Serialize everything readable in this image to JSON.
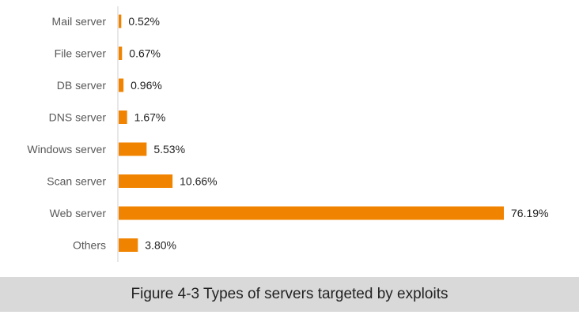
{
  "caption": "Figure 4-3 Types of servers targeted by exploits",
  "colors": {
    "bar": "#f08400",
    "axis": "#cfcfcf"
  },
  "chart_data": {
    "type": "bar",
    "orientation": "horizontal",
    "categories": [
      "Mail server",
      "File server",
      "DB server",
      "DNS server",
      "Windows server",
      "Scan server",
      "Web server",
      "Others"
    ],
    "values": [
      0.52,
      0.67,
      0.96,
      1.67,
      5.53,
      10.66,
      76.19,
      3.8
    ],
    "value_labels": [
      "0.52%",
      "0.67%",
      "0.96%",
      "1.67%",
      "5.53%",
      "10.66%",
      "76.19%",
      "3.80%"
    ],
    "title": "",
    "xlabel": "",
    "ylabel": "",
    "grid": false,
    "legend": "none"
  }
}
